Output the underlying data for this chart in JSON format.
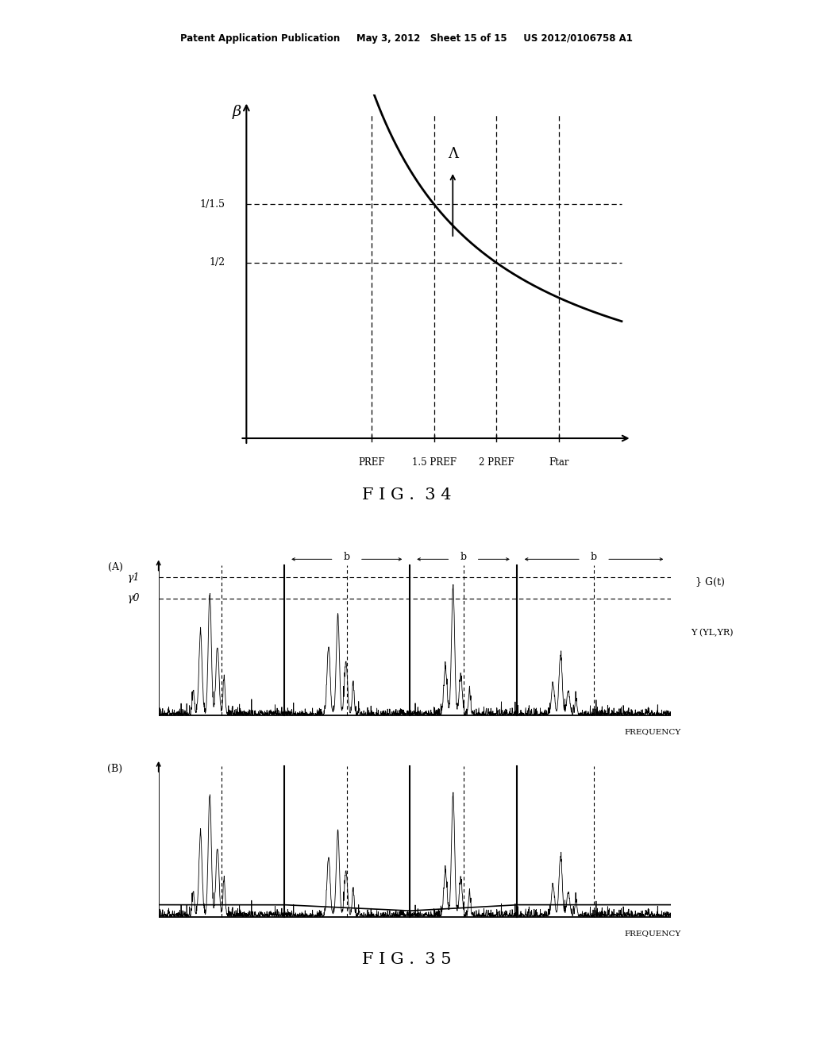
{
  "bg_color": "#ffffff",
  "header_text": "Patent Application Publication     May 3, 2012   Sheet 15 of 15     US 2012/0106758 A1",
  "fig34_title": "F I G .  3 4",
  "fig35_title": "F I G .  3 5",
  "fig34": {
    "beta_label": "β",
    "lambda_label": "Λ",
    "y_tick_labels": [
      "1/1.5",
      "1/2"
    ],
    "y_tick_vals": [
      0.6667,
      0.5
    ],
    "x_labels": [
      "PREF",
      "1.5 PREF",
      "2 PREF",
      "Ftar"
    ],
    "x_tick_positions": [
      1.0,
      1.5,
      2.0,
      2.5
    ]
  },
  "fig35": {
    "panel_A_label": "(A)",
    "panel_B_label": "(B)",
    "gamma1_label": "γ1",
    "gamma0_label": "γ0",
    "Gt_label": "G(t)",
    "Y_label": "Y (YL,YR)",
    "freq_label": "FREQUENCY",
    "b_label": "b"
  }
}
